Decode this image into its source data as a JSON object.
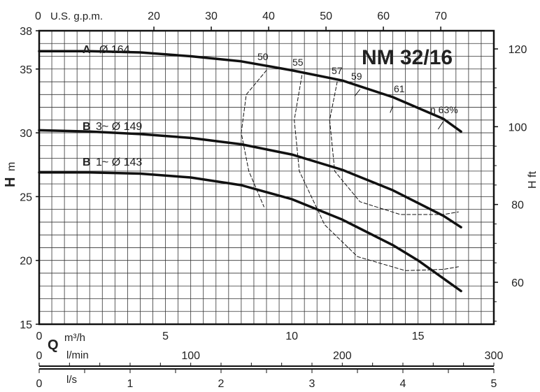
{
  "chart_data": {
    "type": "line",
    "title": "NM 32/16",
    "left_axis": {
      "label_main": "H",
      "label_unit": "m",
      "ticks": [
        "15",
        "20",
        "25",
        "30",
        "35",
        "38"
      ],
      "range": [
        15,
        38
      ]
    },
    "right_axis": {
      "label": "H ft",
      "ticks": [
        "60",
        "80",
        "100",
        "120"
      ]
    },
    "top_axis": {
      "label": "U.S. g.p.m.",
      "ticks": [
        "0",
        "20",
        "30",
        "40",
        "50",
        "60",
        "70"
      ]
    },
    "bottom_axis": {
      "q_symbol": "Q",
      "unit": "m³/h",
      "ticks": [
        "0",
        "5",
        "10",
        "15"
      ],
      "range": [
        0,
        18
      ]
    },
    "lmin_axis": {
      "unit": "l/min",
      "ticks": [
        "0",
        "100",
        "200",
        "300"
      ]
    },
    "ls_axis": {
      "unit": "l/s",
      "ticks": [
        "0",
        "1",
        "2",
        "3",
        "4",
        "5"
      ]
    },
    "grid": true,
    "series": [
      {
        "name": "A Ø 164",
        "prefix": "A",
        "suffix": "Ø 164",
        "points": [
          [
            0,
            36.4
          ],
          [
            2,
            36.4
          ],
          [
            4,
            36.3
          ],
          [
            6,
            36.0
          ],
          [
            8,
            35.6
          ],
          [
            10,
            34.9
          ],
          [
            12,
            34.1
          ],
          [
            14,
            32.8
          ],
          [
            16,
            31.1
          ],
          [
            16.7,
            30.1
          ]
        ]
      },
      {
        "name": "B 3~ Ø 149",
        "prefix": "B",
        "suffix": "3~ Ø 149",
        "points": [
          [
            0,
            30.2
          ],
          [
            2,
            30.1
          ],
          [
            4,
            29.9
          ],
          [
            6,
            29.6
          ],
          [
            8,
            29.1
          ],
          [
            10,
            28.3
          ],
          [
            12,
            27.1
          ],
          [
            14,
            25.5
          ],
          [
            16,
            23.5
          ],
          [
            16.7,
            22.6
          ]
        ]
      },
      {
        "name": "B 1~ Ø 143",
        "prefix": "B",
        "suffix": "1~ Ø 143",
        "points": [
          [
            0,
            26.9
          ],
          [
            2,
            26.9
          ],
          [
            4,
            26.8
          ],
          [
            6,
            26.5
          ],
          [
            8,
            25.9
          ],
          [
            10,
            24.8
          ],
          [
            12,
            23.2
          ],
          [
            14,
            21.2
          ],
          [
            15,
            20.0
          ],
          [
            16.7,
            17.6
          ]
        ]
      }
    ],
    "efficiency_labels": [
      "50",
      "55",
      "57",
      "59",
      "61",
      "η 63%"
    ]
  }
}
